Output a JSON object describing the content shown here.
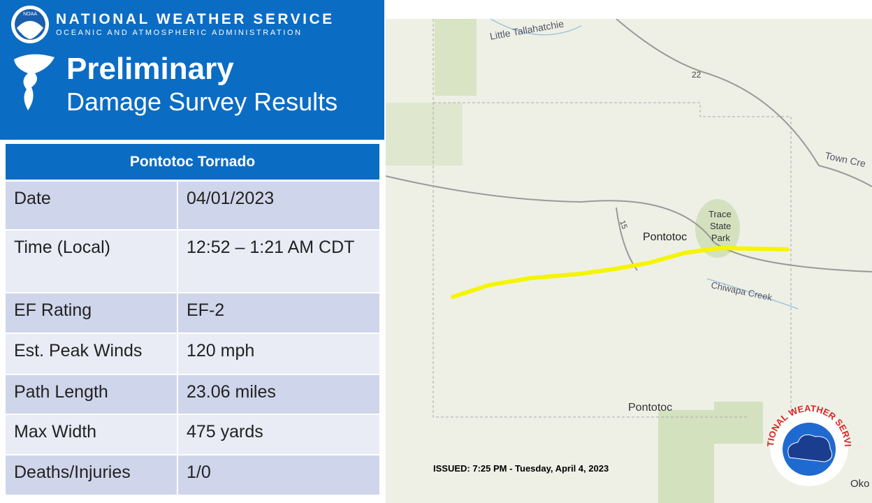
{
  "header": {
    "agency": "NATIONAL WEATHER SERVICE",
    "subagency": "OCEANIC AND ATMOSPHERIC ADMINISTRATION",
    "noaa_logo": "NOAA",
    "title": "Preliminary",
    "subtitle": "Damage Survey Results"
  },
  "table": {
    "title": "Pontotoc Tornado",
    "rows": [
      [
        "Date",
        "04/01/2023"
      ],
      [
        "Time (Local)",
        "12:52 – 1:21 AM CDT"
      ],
      [
        "EF Rating",
        "EF-2"
      ],
      [
        "Est. Peak Winds",
        "120 mph"
      ],
      [
        "Path Length",
        "23.06 miles"
      ],
      [
        "Max Width",
        "475 yards"
      ],
      [
        "Deaths/Injuries",
        "1/0"
      ]
    ]
  },
  "map": {
    "labels": [
      "Little Tallahatchie",
      "22",
      "Town Cre",
      "15",
      "Pontotoc",
      "Trace",
      "State",
      "Park",
      "Chiwapa Creek",
      "Pontotoc",
      "Oko"
    ]
  },
  "issued": "ISSUED: 7:25 PM - Tuesday, April 4, 2023",
  "logo": "NATIONAL WEATHER SERVICE"
}
